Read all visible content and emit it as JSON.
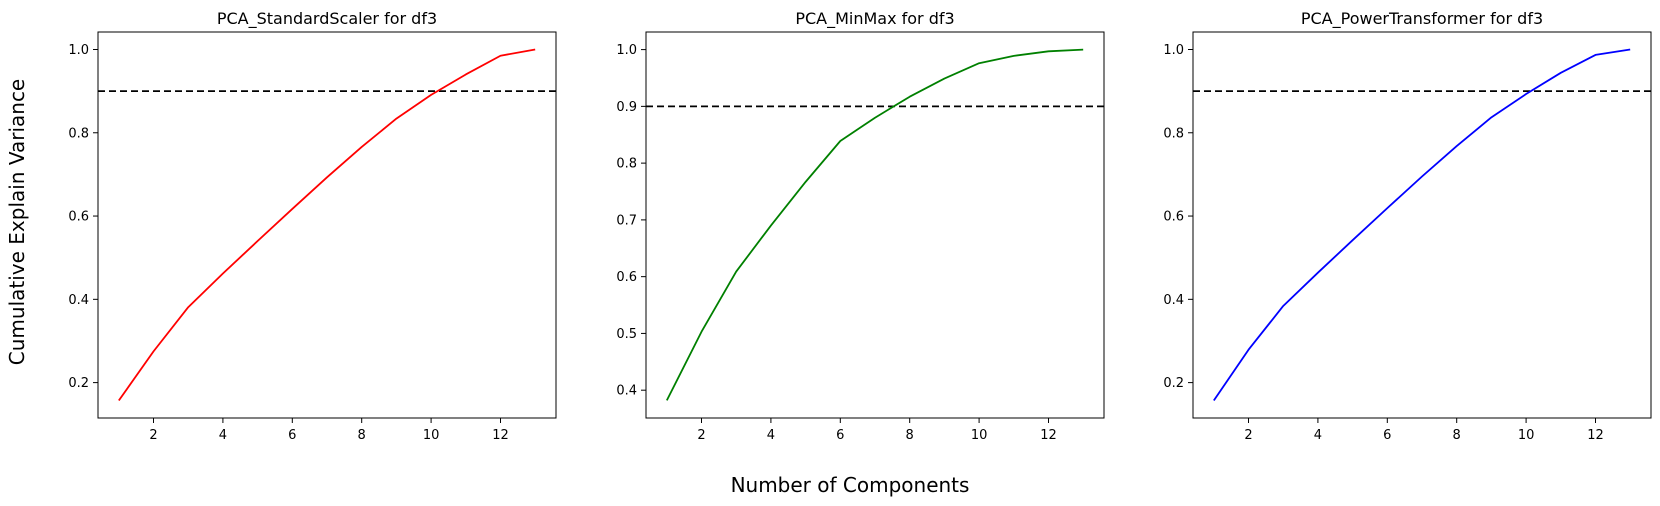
{
  "figure": {
    "ylabel": "Cumulative Explain Variance",
    "xlabel": "Number of Components"
  },
  "chart_data": [
    {
      "type": "line",
      "title": "PCA_StandardScaler for df3",
      "xlabel": "",
      "ylabel": "",
      "xlim": [
        0.4,
        13.6
      ],
      "ylim": [
        0.115,
        1.042
      ],
      "xticks": [
        2,
        4,
        6,
        8,
        10,
        12
      ],
      "yticks": [
        0.2,
        0.4,
        0.6,
        0.8,
        1.0
      ],
      "ytick_labels": [
        "0.2",
        "0.4",
        "0.6",
        "0.8",
        "1.0"
      ],
      "grid": false,
      "hline": {
        "y": 0.9,
        "style": "dashed",
        "color": "#000000"
      },
      "series": [
        {
          "color": "#ff0000",
          "x": [
            1,
            2,
            3,
            4,
            5,
            6,
            7,
            8,
            9,
            10,
            11,
            12,
            13
          ],
          "values": [
            0.157,
            0.275,
            0.381,
            0.462,
            0.54,
            0.617,
            0.693,
            0.766,
            0.834,
            0.891,
            0.94,
            0.985,
            1.0
          ]
        }
      ]
    },
    {
      "type": "line",
      "title": "PCA_MinMax for df3",
      "xlabel": "",
      "ylabel": "",
      "xlim": [
        0.4,
        13.6
      ],
      "ylim": [
        0.351,
        1.031
      ],
      "xticks": [
        2,
        4,
        6,
        8,
        10,
        12
      ],
      "yticks": [
        0.4,
        0.5,
        0.6,
        0.7,
        0.8,
        0.9,
        1.0
      ],
      "ytick_labels": [
        "0.4",
        "0.5",
        "0.6",
        "0.7",
        "0.8",
        "0.9",
        "1.0"
      ],
      "grid": false,
      "hline": {
        "y": 0.9,
        "style": "dashed",
        "color": "#000000"
      },
      "series": [
        {
          "color": "#008000",
          "x": [
            1,
            2,
            3,
            4,
            5,
            6,
            7,
            8,
            9,
            10,
            11,
            12,
            13
          ],
          "values": [
            0.382,
            0.503,
            0.609,
            0.69,
            0.767,
            0.839,
            0.88,
            0.917,
            0.949,
            0.976,
            0.989,
            0.997,
            1.0
          ]
        }
      ]
    },
    {
      "type": "line",
      "title": "PCA_PowerTransformer for df3",
      "xlabel": "",
      "ylabel": "",
      "xlim": [
        0.4,
        13.6
      ],
      "ylim": [
        0.115,
        1.042
      ],
      "xticks": [
        2,
        4,
        6,
        8,
        10,
        12
      ],
      "yticks": [
        0.2,
        0.4,
        0.6,
        0.8,
        1.0
      ],
      "ytick_labels": [
        "0.2",
        "0.4",
        "0.6",
        "0.8",
        "1.0"
      ],
      "grid": false,
      "hline": {
        "y": 0.9,
        "style": "dashed",
        "color": "#000000"
      },
      "series": [
        {
          "color": "#0000ff",
          "x": [
            1,
            2,
            3,
            4,
            5,
            6,
            7,
            8,
            9,
            10,
            11,
            12,
            13
          ],
          "values": [
            0.157,
            0.279,
            0.384,
            0.464,
            0.542,
            0.619,
            0.695,
            0.768,
            0.837,
            0.893,
            0.944,
            0.987,
            1.0
          ]
        }
      ]
    }
  ]
}
